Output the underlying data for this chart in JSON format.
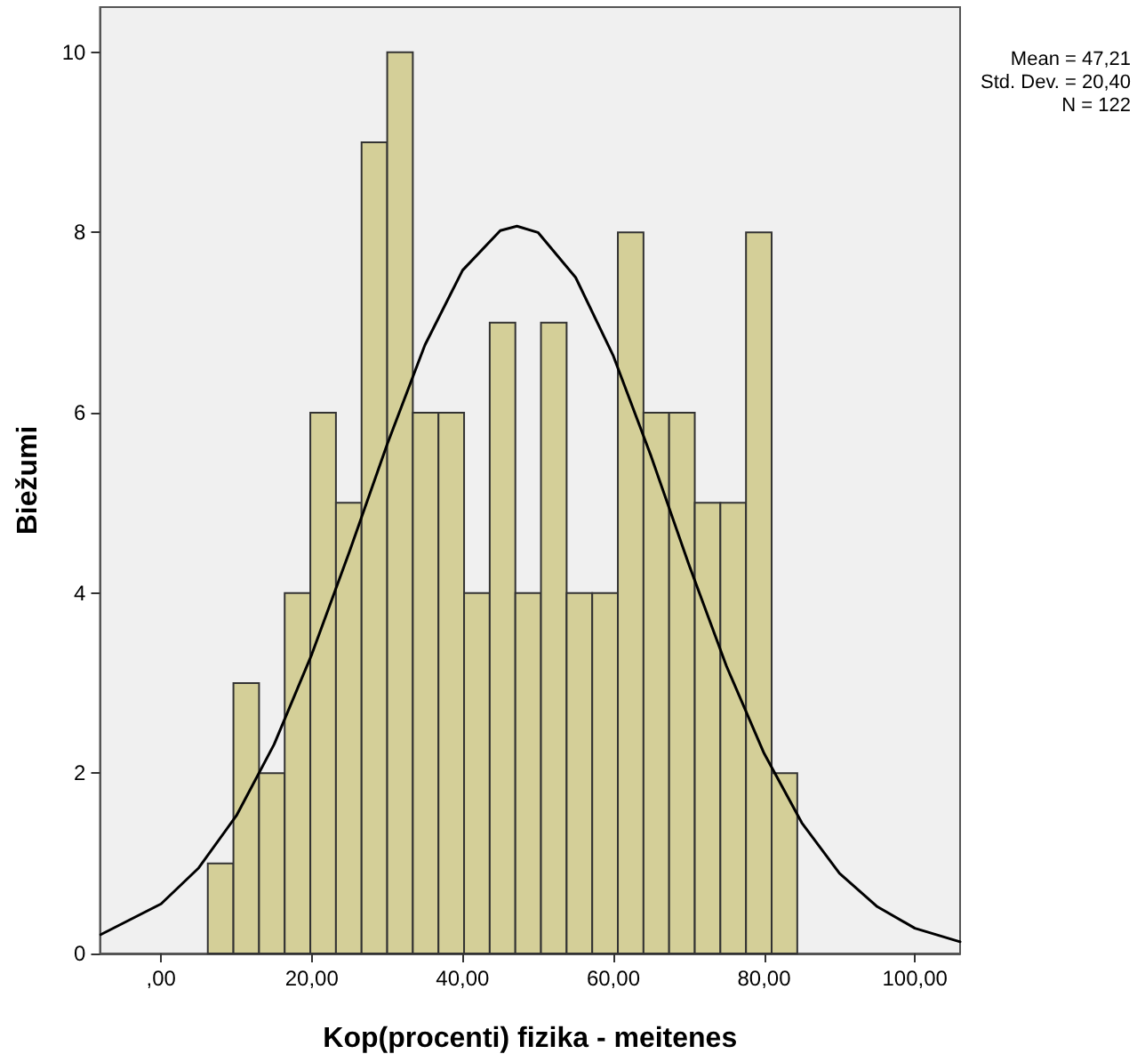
{
  "chart_data": {
    "type": "histogram",
    "xlabel": "Kop(procenti) fizika - meitenes",
    "ylabel": "Biežumi",
    "bins": [
      6.2,
      9.6,
      13.0,
      16.4,
      19.8,
      23.2,
      26.6,
      30.0,
      33.4,
      36.8,
      40.2,
      43.6,
      47.0,
      50.4,
      53.8,
      57.2,
      60.6,
      64.0,
      67.4,
      70.8,
      74.2,
      77.6,
      81.0,
      84.4
    ],
    "values": [
      1,
      3,
      2,
      4,
      6,
      5,
      9,
      10,
      6,
      6,
      4,
      7,
      4,
      7,
      4,
      4,
      8,
      6,
      6,
      5,
      5,
      8,
      2
    ],
    "color": "#d4cf98",
    "series": [
      {
        "type": "line",
        "color": "#000000",
        "x": [
          -8,
          0,
          5,
          10,
          15,
          20,
          25,
          30,
          35,
          40,
          45,
          47.21,
          50,
          55,
          60,
          65,
          70,
          75,
          80,
          85,
          90,
          95,
          100,
          106
        ],
        "values": [
          0.21,
          0.55,
          0.95,
          1.53,
          2.32,
          3.32,
          4.46,
          5.65,
          6.75,
          7.58,
          8.02,
          8.07,
          8.0,
          7.5,
          6.63,
          5.52,
          4.32,
          3.19,
          2.22,
          1.45,
          0.89,
          0.52,
          0.28,
          0.13
        ]
      }
    ],
    "xlim": [
      -8.1,
      106
    ],
    "xticks": [
      {
        "value": 0,
        "label": ",00"
      },
      {
        "value": 20,
        "label": "20,00"
      },
      {
        "value": 40,
        "label": "40,00"
      },
      {
        "value": 60,
        "label": "60,00"
      },
      {
        "value": 80,
        "label": "80,00"
      },
      {
        "value": 100,
        "label": "100,00"
      }
    ],
    "ylim": [
      0,
      10.5
    ],
    "yticks": [
      0,
      2,
      4,
      6,
      8,
      10
    ],
    "annotations": [
      "Mean = 47,21",
      "Std. Dev. = 20,40",
      "N = 122"
    ],
    "grid": false,
    "marker": "none",
    "line_style": "solid"
  }
}
